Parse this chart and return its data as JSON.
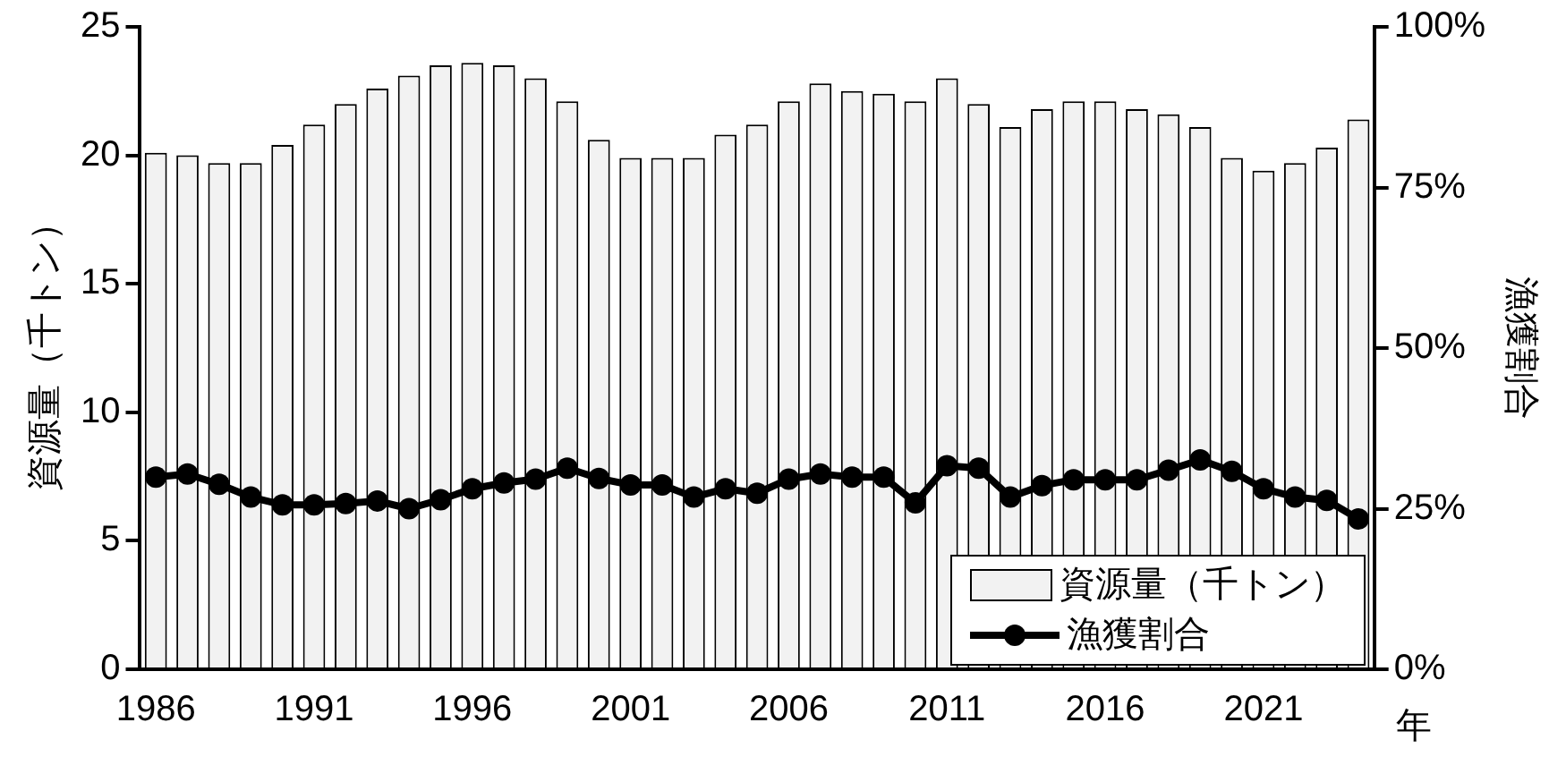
{
  "chart_data": {
    "type": "bar",
    "xlabel": "年",
    "ylabel": "資源量（千トン）",
    "y2label": "漁獲割合",
    "categories": [
      "1986",
      null,
      null,
      null,
      null,
      "1991",
      null,
      null,
      null,
      null,
      "1996",
      null,
      null,
      null,
      null,
      "2001",
      null,
      null,
      null,
      null,
      "2006",
      null,
      null,
      null,
      null,
      "2011",
      null,
      null,
      null,
      null,
      "2016",
      null,
      null,
      null,
      null,
      "2021",
      null,
      null,
      null
    ],
    "series": [
      {
        "name": "資源量（千トン）",
        "color": "#f2f2f2",
        "values": [
          20.1,
          20.0,
          19.7,
          19.7,
          20.4,
          21.2,
          22.0,
          22.6,
          23.1,
          23.5,
          23.6,
          23.5,
          23.0,
          22.1,
          20.6,
          19.9,
          19.9,
          19.9,
          20.8,
          21.2,
          22.1,
          22.8,
          22.5,
          22.4,
          22.1,
          23.0,
          22.0,
          21.1,
          21.8,
          22.1,
          22.1,
          21.8,
          21.6,
          21.1,
          19.9,
          19.4,
          19.7,
          20.3,
          21.4
        ]
      },
      {
        "name": "漁獲割合",
        "type": "line",
        "axis": "y2",
        "color": "#000000",
        "marker": "circle",
        "line_style": "solid",
        "values": [
          29.9,
          30.4,
          28.8,
          26.8,
          25.6,
          25.6,
          25.8,
          26.2,
          25.0,
          26.4,
          28.1,
          29.0,
          29.6,
          31.3,
          29.7,
          28.7,
          28.7,
          26.8,
          28.1,
          27.4,
          29.6,
          30.4,
          29.9,
          29.9,
          25.9,
          31.7,
          31.3,
          26.8,
          28.6,
          29.5,
          29.5,
          29.5,
          31.0,
          32.6,
          30.8,
          28.1,
          26.8,
          26.3,
          23.4
        ]
      }
    ],
    "ylim": [
      0,
      25
    ],
    "yticks": [
      0,
      5,
      10,
      15,
      20,
      25
    ],
    "y2lim": [
      0,
      100
    ],
    "y2ticks": [
      {
        "value": 0,
        "label": "0%"
      },
      {
        "value": 25,
        "label": "25%"
      },
      {
        "value": 50,
        "label": "50%"
      },
      {
        "value": 75,
        "label": "75%"
      },
      {
        "value": 100,
        "label": "100%"
      }
    ],
    "grid": false,
    "legend": "bottom right"
  }
}
